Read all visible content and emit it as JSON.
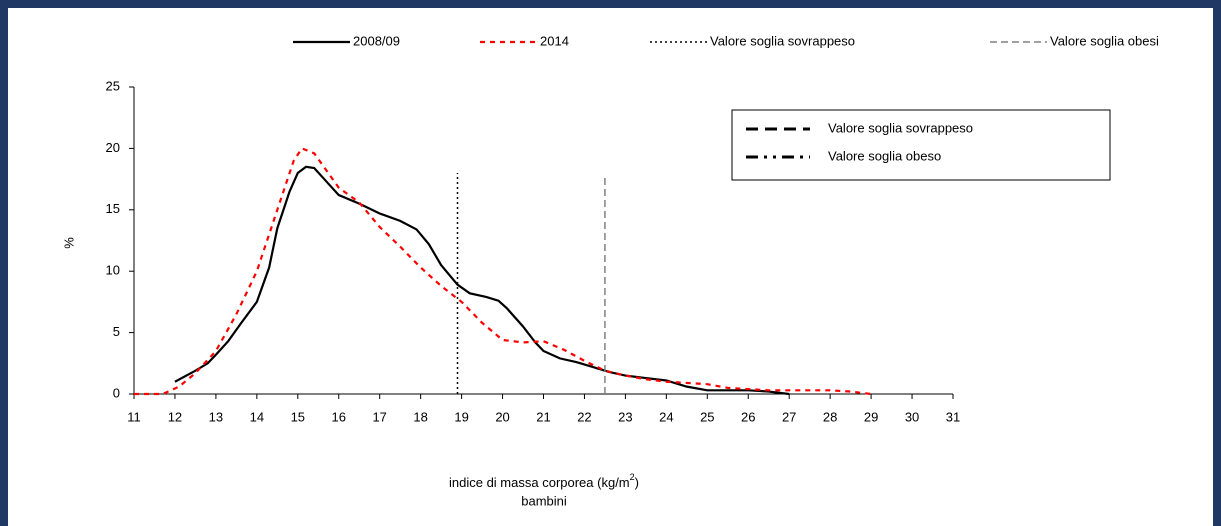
{
  "chart_data": {
    "type": "line",
    "y_label": "%",
    "x_label": {
      "text": "indice di massa corporea (kg/m",
      "sup": "2",
      "end": ")",
      "line2": "bambini"
    },
    "xlim": [
      11,
      31
    ],
    "xticks": [
      11,
      12,
      13,
      14,
      15,
      16,
      17,
      18,
      19,
      20,
      21,
      22,
      23,
      24,
      25,
      26,
      27,
      28,
      29,
      30,
      31
    ],
    "ylim": [
      0,
      25
    ],
    "yticks": [
      0,
      5,
      10,
      15,
      20,
      25
    ],
    "legend": "top",
    "series": [
      {
        "name": "2008/09",
        "color": "#000000",
        "width": 2.2,
        "dash": "none",
        "x": [
          12,
          12.5,
          12.8,
          13,
          13.3,
          13.6,
          14,
          14.3,
          14.5,
          14.8,
          15,
          15.2,
          15.4,
          15.7,
          16,
          16.5,
          17,
          17.5,
          17.9,
          18.2,
          18.5,
          18.9,
          19.2,
          19.6,
          19.9,
          20.1,
          20.5,
          20.8,
          21,
          21.4,
          21.8,
          22.2,
          22.6,
          23,
          23.5,
          24,
          24.5,
          25,
          25.5,
          26,
          26.5,
          27
        ],
        "values": [
          1.0,
          1.9,
          2.5,
          3.2,
          4.3,
          5.7,
          7.5,
          10.3,
          13.5,
          16.5,
          18.0,
          18.5,
          18.4,
          17.3,
          16.2,
          15.5,
          14.7,
          14.1,
          13.4,
          12.2,
          10.5,
          8.9,
          8.2,
          7.9,
          7.6,
          7.0,
          5.5,
          4.2,
          3.5,
          2.9,
          2.6,
          2.2,
          1.8,
          1.5,
          1.3,
          1.1,
          0.6,
          0.3,
          0.3,
          0.3,
          0.2,
          0.0
        ]
      },
      {
        "name": "2014",
        "color": "#ff0000",
        "width": 2.2,
        "dash": "5,5",
        "x": [
          11,
          11.7,
          12.1,
          12.5,
          13,
          13.5,
          14,
          14.3,
          14.6,
          14.9,
          15.1,
          15.4,
          15.7,
          16,
          16.5,
          17,
          17.5,
          18,
          18.5,
          19,
          19.5,
          20,
          20.5,
          21,
          21.5,
          22,
          22.5,
          23,
          23.5,
          24,
          24.5,
          25,
          25.5,
          26,
          26.5,
          27,
          27.5,
          28,
          28.5,
          29
        ],
        "values": [
          0,
          0,
          0.6,
          1.7,
          3.5,
          6.5,
          10.0,
          13.0,
          16.0,
          19.0,
          20.0,
          19.6,
          18.2,
          16.8,
          15.6,
          13.6,
          12.0,
          10.3,
          8.8,
          7.5,
          5.8,
          4.4,
          4.2,
          4.3,
          3.6,
          2.7,
          1.9,
          1.5,
          1.2,
          1.0,
          0.9,
          0.8,
          0.5,
          0.4,
          0.3,
          0.3,
          0.3,
          0.3,
          0.2,
          0
        ]
      },
      {
        "name": "Valore soglia sovrappeso",
        "color": "#000000",
        "width": 1.5,
        "dash": "2,3",
        "x": [
          18.9,
          18.9
        ],
        "values": [
          0,
          18
        ]
      },
      {
        "name": "Valore soglia obesi",
        "color": "#808080",
        "width": 1.5,
        "dash": "7,4",
        "x": [
          22.5,
          22.5
        ],
        "values": [
          0,
          17.6
        ]
      }
    ],
    "inner_legend": [
      {
        "name": "Valore soglia sovrappeso",
        "dash": "12,7"
      },
      {
        "name": "Valore soglia obeso",
        "dash": "12,6,3,6,3,6"
      }
    ]
  }
}
